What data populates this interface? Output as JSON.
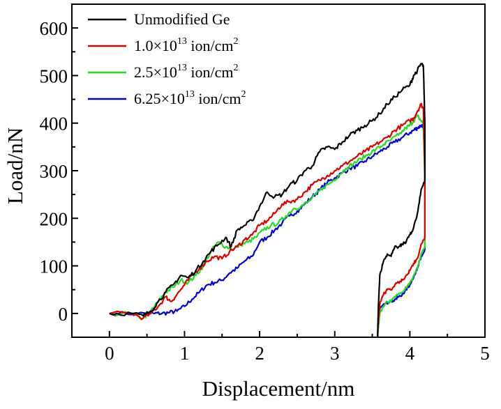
{
  "chart_data": {
    "type": "line",
    "title": "",
    "xlabel": "Displacement/nm",
    "ylabel": "Load/nN",
    "xlim": [
      -0.5,
      5
    ],
    "ylim": [
      -50,
      650
    ],
    "xticks": [
      0,
      1,
      2,
      3,
      4,
      5
    ],
    "yticks": [
      0,
      100,
      200,
      300,
      400,
      500,
      600
    ],
    "grid": false,
    "legend_position": "top-left",
    "series": [
      {
        "name": "Unmodified Ge",
        "legend_parts": {
          "main": "Unmodified Ge",
          "sup": "",
          "tail": ""
        },
        "color": "#000000",
        "loading": [
          [
            0,
            0
          ],
          [
            0.3,
            0
          ],
          [
            0.45,
            -5
          ],
          [
            0.55,
            5
          ],
          [
            0.65,
            25
          ],
          [
            0.75,
            45
          ],
          [
            0.85,
            60
          ],
          [
            0.95,
            80
          ],
          [
            1.05,
            75
          ],
          [
            1.15,
            90
          ],
          [
            1.25,
            110
          ],
          [
            1.35,
            130
          ],
          [
            1.45,
            145
          ],
          [
            1.55,
            160
          ],
          [
            1.62,
            140
          ],
          [
            1.7,
            175
          ],
          [
            1.8,
            185
          ],
          [
            1.9,
            195
          ],
          [
            2.0,
            225
          ],
          [
            2.1,
            255
          ],
          [
            2.2,
            245
          ],
          [
            2.3,
            250
          ],
          [
            2.4,
            270
          ],
          [
            2.5,
            280
          ],
          [
            2.6,
            300
          ],
          [
            2.7,
            310
          ],
          [
            2.8,
            340
          ],
          [
            2.9,
            350
          ],
          [
            3.0,
            345
          ],
          [
            3.1,
            360
          ],
          [
            3.2,
            375
          ],
          [
            3.3,
            385
          ],
          [
            3.4,
            395
          ],
          [
            3.5,
            405
          ],
          [
            3.6,
            420
          ],
          [
            3.7,
            440
          ],
          [
            3.8,
            455
          ],
          [
            3.9,
            470
          ],
          [
            4.0,
            480
          ],
          [
            4.05,
            500
          ],
          [
            4.1,
            510
          ],
          [
            4.15,
            525
          ],
          [
            4.18,
            520
          ]
        ],
        "unloading": [
          [
            4.18,
            520
          ],
          [
            4.2,
            400
          ],
          [
            4.2,
            280
          ],
          [
            4.15,
            260
          ],
          [
            4.1,
            210
          ],
          [
            4.05,
            180
          ],
          [
            4.0,
            165
          ],
          [
            3.95,
            150
          ],
          [
            3.9,
            145
          ],
          [
            3.85,
            140
          ],
          [
            3.8,
            140
          ],
          [
            3.75,
            120
          ],
          [
            3.7,
            125
          ],
          [
            3.65,
            110
          ],
          [
            3.6,
            80
          ],
          [
            3.58,
            10
          ],
          [
            3.57,
            -50
          ]
        ]
      },
      {
        "name": "1.0×1013 ion/cm2",
        "legend_parts": {
          "main": "1.0×10",
          "sup": "13",
          "tail": " ion/cm",
          "tail_sup": "2"
        },
        "color": "#e00000",
        "loading": [
          [
            0,
            0
          ],
          [
            0.3,
            0
          ],
          [
            0.45,
            -10
          ],
          [
            0.55,
            0
          ],
          [
            0.65,
            15
          ],
          [
            0.75,
            35
          ],
          [
            0.82,
            25
          ],
          [
            0.9,
            40
          ],
          [
            1.0,
            60
          ],
          [
            1.1,
            80
          ],
          [
            1.2,
            95
          ],
          [
            1.3,
            110
          ],
          [
            1.4,
            120
          ],
          [
            1.5,
            115
          ],
          [
            1.6,
            130
          ],
          [
            1.7,
            140
          ],
          [
            1.8,
            155
          ],
          [
            1.9,
            165
          ],
          [
            2.0,
            185
          ],
          [
            2.1,
            195
          ],
          [
            2.2,
            210
          ],
          [
            2.3,
            230
          ],
          [
            2.4,
            235
          ],
          [
            2.5,
            240
          ],
          [
            2.6,
            255
          ],
          [
            2.7,
            270
          ],
          [
            2.8,
            280
          ],
          [
            2.9,
            290
          ],
          [
            3.0,
            300
          ],
          [
            3.1,
            310
          ],
          [
            3.2,
            320
          ],
          [
            3.3,
            330
          ],
          [
            3.4,
            340
          ],
          [
            3.5,
            350
          ],
          [
            3.6,
            360
          ],
          [
            3.7,
            370
          ],
          [
            3.8,
            385
          ],
          [
            3.9,
            395
          ],
          [
            4.0,
            405
          ],
          [
            4.05,
            410
          ],
          [
            4.1,
            425
          ],
          [
            4.15,
            440
          ],
          [
            4.18,
            430
          ]
        ],
        "unloading": [
          [
            4.18,
            430
          ],
          [
            4.2,
            300
          ],
          [
            4.2,
            160
          ],
          [
            4.15,
            145
          ],
          [
            4.1,
            115
          ],
          [
            4.05,
            105
          ],
          [
            4.0,
            90
          ],
          [
            3.95,
            80
          ],
          [
            3.9,
            70
          ],
          [
            3.85,
            65
          ],
          [
            3.8,
            60
          ],
          [
            3.75,
            50
          ],
          [
            3.7,
            50
          ],
          [
            3.65,
            40
          ],
          [
            3.6,
            20
          ],
          [
            3.58,
            -20
          ],
          [
            3.57,
            -50
          ]
        ]
      },
      {
        "name": "2.5×1013 ion/cm2",
        "legend_parts": {
          "main": "2.5×10",
          "sup": "13",
          "tail": " ion/cm",
          "tail_sup": "2"
        },
        "color": "#22dd22",
        "loading": [
          [
            0,
            0
          ],
          [
            0.3,
            0
          ],
          [
            0.45,
            -10
          ],
          [
            0.55,
            5
          ],
          [
            0.65,
            25
          ],
          [
            0.75,
            45
          ],
          [
            0.85,
            55
          ],
          [
            0.95,
            70
          ],
          [
            1.05,
            65
          ],
          [
            1.15,
            80
          ],
          [
            1.25,
            100
          ],
          [
            1.35,
            130
          ],
          [
            1.45,
            150
          ],
          [
            1.55,
            140
          ],
          [
            1.65,
            135
          ],
          [
            1.75,
            145
          ],
          [
            1.85,
            150
          ],
          [
            1.95,
            160
          ],
          [
            2.05,
            175
          ],
          [
            2.15,
            185
          ],
          [
            2.25,
            190
          ],
          [
            2.35,
            205
          ],
          [
            2.45,
            220
          ],
          [
            2.55,
            225
          ],
          [
            2.65,
            235
          ],
          [
            2.75,
            250
          ],
          [
            2.85,
            265
          ],
          [
            2.95,
            275
          ],
          [
            3.05,
            290
          ],
          [
            3.15,
            305
          ],
          [
            3.25,
            315
          ],
          [
            3.35,
            325
          ],
          [
            3.45,
            335
          ],
          [
            3.55,
            345
          ],
          [
            3.65,
            355
          ],
          [
            3.75,
            365
          ],
          [
            3.85,
            375
          ],
          [
            3.95,
            390
          ],
          [
            4.0,
            395
          ],
          [
            4.05,
            405
          ],
          [
            4.1,
            415
          ],
          [
            4.15,
            405
          ],
          [
            4.18,
            400
          ]
        ],
        "unloading": [
          [
            4.18,
            400
          ],
          [
            4.2,
            280
          ],
          [
            4.2,
            140
          ],
          [
            4.15,
            125
          ],
          [
            4.1,
            95
          ],
          [
            4.05,
            80
          ],
          [
            4.0,
            65
          ],
          [
            3.95,
            55
          ],
          [
            3.9,
            45
          ],
          [
            3.85,
            40
          ],
          [
            3.8,
            35
          ],
          [
            3.75,
            25
          ],
          [
            3.7,
            25
          ],
          [
            3.65,
            15
          ],
          [
            3.6,
            0
          ],
          [
            3.58,
            -30
          ],
          [
            3.57,
            -50
          ]
        ]
      },
      {
        "name": "6.25×1013 ion/cm2",
        "legend_parts": {
          "main": "6.25×10",
          "sup": "13",
          "tail": " ion/cm",
          "tail_sup": "2"
        },
        "color": "#0000dd",
        "loading": [
          [
            0,
            0
          ],
          [
            0.5,
            0
          ],
          [
            0.6,
            0
          ],
          [
            0.7,
            0
          ],
          [
            0.8,
            2
          ],
          [
            0.9,
            5
          ],
          [
            1.0,
            15
          ],
          [
            1.1,
            30
          ],
          [
            1.2,
            45
          ],
          [
            1.3,
            60
          ],
          [
            1.4,
            65
          ],
          [
            1.5,
            70
          ],
          [
            1.6,
            85
          ],
          [
            1.7,
            95
          ],
          [
            1.8,
            110
          ],
          [
            1.9,
            120
          ],
          [
            2.0,
            150
          ],
          [
            2.1,
            160
          ],
          [
            2.2,
            175
          ],
          [
            2.3,
            190
          ],
          [
            2.4,
            205
          ],
          [
            2.5,
            215
          ],
          [
            2.6,
            230
          ],
          [
            2.7,
            245
          ],
          [
            2.8,
            260
          ],
          [
            2.9,
            275
          ],
          [
            3.0,
            285
          ],
          [
            3.1,
            295
          ],
          [
            3.2,
            305
          ],
          [
            3.3,
            310
          ],
          [
            3.4,
            320
          ],
          [
            3.5,
            330
          ],
          [
            3.6,
            340
          ],
          [
            3.7,
            350
          ],
          [
            3.8,
            360
          ],
          [
            3.9,
            370
          ],
          [
            4.0,
            380
          ],
          [
            4.05,
            385
          ],
          [
            4.1,
            390
          ],
          [
            4.15,
            395
          ],
          [
            4.18,
            395
          ]
        ],
        "unloading": [
          [
            4.18,
            395
          ],
          [
            4.2,
            300
          ],
          [
            4.2,
            135
          ],
          [
            4.15,
            120
          ],
          [
            4.1,
            95
          ],
          [
            4.05,
            75
          ],
          [
            4.0,
            60
          ],
          [
            3.95,
            50
          ],
          [
            3.9,
            40
          ],
          [
            3.85,
            35
          ],
          [
            3.8,
            30
          ],
          [
            3.75,
            25
          ],
          [
            3.7,
            20
          ],
          [
            3.65,
            20
          ],
          [
            3.6,
            10
          ],
          [
            3.58,
            -30
          ],
          [
            3.57,
            -50
          ]
        ]
      }
    ]
  }
}
